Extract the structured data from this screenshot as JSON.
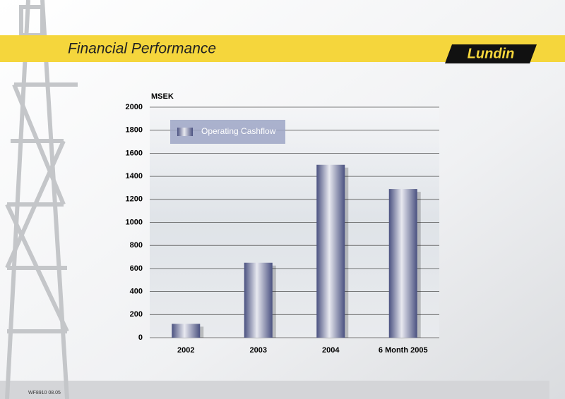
{
  "header": {
    "title": "Financial Performance",
    "logo": "Lundin"
  },
  "footer": "WF8910 08.05",
  "chart_data": {
    "type": "bar",
    "y_label": "MSEK",
    "categories": [
      "2002",
      "2003",
      "2004",
      "6 Month 2005"
    ],
    "series": [
      {
        "name": "Operating Cashflow",
        "color": "#4a5180",
        "values": [
          120,
          650,
          1500,
          1290
        ]
      }
    ],
    "ylim": [
      0,
      2000
    ],
    "yticks": [
      0,
      200,
      400,
      600,
      800,
      1000,
      1200,
      1400,
      1600,
      1800,
      2000
    ],
    "grid": true,
    "legend": "top-left"
  }
}
